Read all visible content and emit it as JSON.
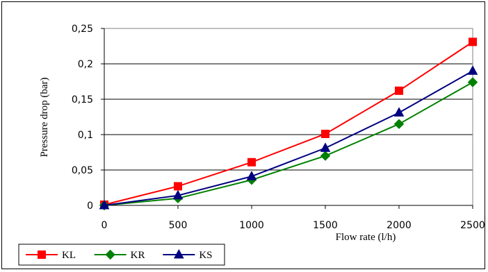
{
  "chart_data": {
    "type": "line",
    "xlabel": "Flow rate (l/h)",
    "ylabel": "Pressure drop (bar)",
    "x": [
      0,
      500,
      1000,
      1500,
      2000,
      2500
    ],
    "xlim": [
      0,
      2500
    ],
    "ylim": [
      0,
      0.25
    ],
    "x_ticks": [
      "0",
      "500",
      "1000",
      "1500",
      "2000",
      "2500"
    ],
    "y_ticks": [
      "0",
      "0,05",
      "0,1",
      "0,15",
      "0,2",
      "0,25"
    ],
    "grid": "horizontal",
    "legend_position": "bottom-left",
    "series": [
      {
        "name": "KL",
        "color": "#ff0000",
        "marker": "square",
        "values": [
          0.001,
          0.027,
          0.061,
          0.101,
          0.162,
          0.231
        ]
      },
      {
        "name": "KR",
        "color": "#008000",
        "marker": "diamond",
        "values": [
          0.0,
          0.01,
          0.036,
          0.07,
          0.115,
          0.174
        ]
      },
      {
        "name": "KS",
        "color": "#000080",
        "marker": "triangle",
        "values": [
          0.0,
          0.014,
          0.041,
          0.081,
          0.131,
          0.19
        ]
      }
    ]
  }
}
